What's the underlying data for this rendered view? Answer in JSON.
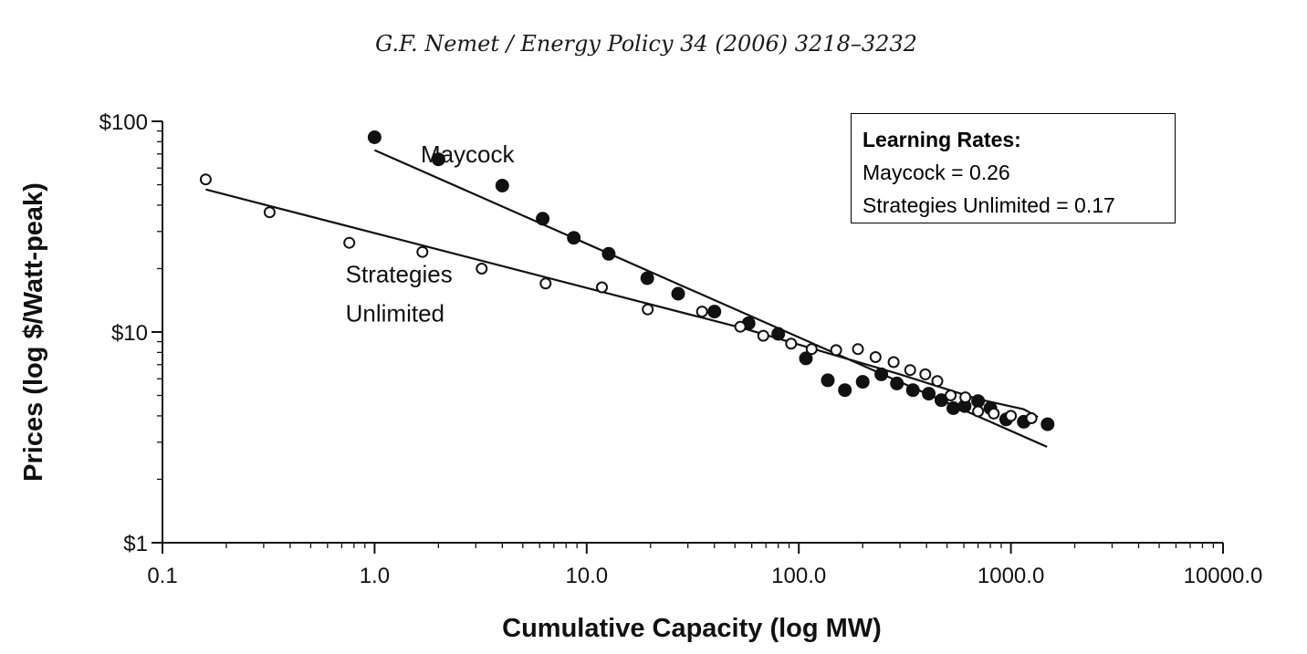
{
  "header": "G.F. Nemet / Energy Policy 34 (2006) 3218–3232",
  "learning_rates": {
    "title": "Learning Rates:",
    "maycock": "Maycock = 0.26",
    "strategies": "Strategies Unlimited = 0.17"
  },
  "chart_data": {
    "type": "scatter",
    "xscale": "log",
    "yscale": "log",
    "xlabel": "Cumulative Capacity (log MW)",
    "ylabel": "Prices (log $/Watt-peak)",
    "xlim": [
      0.1,
      10000
    ],
    "ylim": [
      1,
      100
    ],
    "xticks": [
      {
        "v": 0.1,
        "label": "0.1"
      },
      {
        "v": 1,
        "label": "1.0"
      },
      {
        "v": 10,
        "label": "10.0"
      },
      {
        "v": 100,
        "label": "100.0"
      },
      {
        "v": 1000,
        "label": "1000.0"
      },
      {
        "v": 10000,
        "label": "10000.0"
      }
    ],
    "yticks": [
      {
        "v": 1,
        "label": "$1"
      },
      {
        "v": 10,
        "label": "$10"
      },
      {
        "v": 100,
        "label": "$100"
      }
    ],
    "annotations": [
      {
        "text": "Maycock",
        "x": 1.65,
        "y": 64
      },
      {
        "text": "Strategies",
        "x": 0.73,
        "y": 17.2
      },
      {
        "text": "Unlimited",
        "x": 0.73,
        "y": 11.2
      }
    ],
    "series": [
      {
        "name": "Maycock",
        "marker": "filled",
        "points": [
          [
            1.0,
            84
          ],
          [
            2.0,
            66
          ],
          [
            4.0,
            49.5
          ],
          [
            6.2,
            34.5
          ],
          [
            8.7,
            28
          ],
          [
            12.7,
            23.5
          ],
          [
            19.3,
            18
          ],
          [
            27,
            15.2
          ],
          [
            40,
            12.5
          ],
          [
            58,
            11
          ],
          [
            80,
            9.8
          ],
          [
            108,
            7.5
          ],
          [
            137,
            5.9
          ],
          [
            165,
            5.3
          ],
          [
            200,
            5.8
          ],
          [
            245,
            6.3
          ],
          [
            290,
            5.7
          ],
          [
            345,
            5.3
          ],
          [
            410,
            5.1
          ],
          [
            470,
            4.75
          ],
          [
            535,
            4.35
          ],
          [
            605,
            4.45
          ],
          [
            700,
            4.7
          ],
          [
            800,
            4.35
          ],
          [
            950,
            3.85
          ],
          [
            1150,
            3.75
          ],
          [
            1490,
            3.65
          ]
        ],
        "fit": [
          [
            1.0,
            73
          ],
          [
            1480,
            2.85
          ]
        ],
        "fit_points": [
          [
            1.0,
            73
          ],
          [
            1480,
            2.85
          ]
        ]
      },
      {
        "name": "Strategies Unlimited",
        "marker": "open",
        "points": [
          [
            0.16,
            53
          ],
          [
            0.32,
            37
          ],
          [
            0.76,
            26.5
          ],
          [
            1.68,
            24
          ],
          [
            3.2,
            20
          ],
          [
            6.4,
            17
          ],
          [
            11.8,
            16.3
          ],
          [
            19.4,
            12.8
          ],
          [
            35,
            12.5
          ],
          [
            53,
            10.6
          ],
          [
            68,
            9.6
          ],
          [
            92,
            8.8
          ],
          [
            115,
            8.3
          ],
          [
            150,
            8.2
          ],
          [
            190,
            8.3
          ],
          [
            230,
            7.6
          ],
          [
            280,
            7.2
          ],
          [
            335,
            6.6
          ],
          [
            395,
            6.3
          ],
          [
            450,
            5.85
          ],
          [
            520,
            5.0
          ],
          [
            610,
            4.9
          ],
          [
            700,
            4.2
          ],
          [
            830,
            4.1
          ],
          [
            1000,
            4.0
          ],
          [
            1250,
            3.9
          ]
        ],
        "fit": [
          [
            0.16,
            47.5
          ],
          [
            1260,
            4.1
          ]
        ],
        "fit_points": [
          [
            0.16,
            47.5
          ],
          [
            55,
            10.4
          ],
          [
            300,
            6.3
          ],
          [
            700,
            4.8
          ],
          [
            1150,
            4.3
          ],
          [
            1340,
            3.95
          ]
        ]
      }
    ]
  }
}
